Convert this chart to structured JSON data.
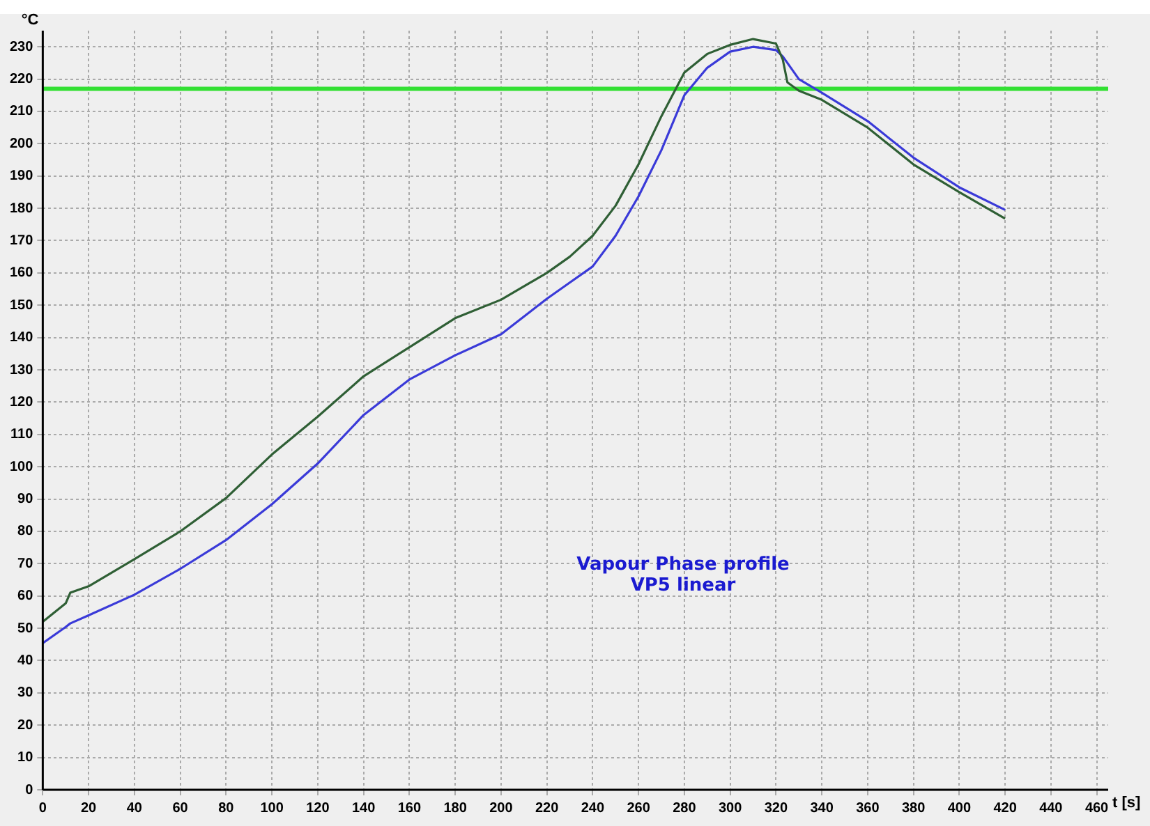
{
  "chart_data": {
    "type": "line",
    "xlabel": "t [s]",
    "ylabel": "°C",
    "annotations": [
      "Vapour Phase profile",
      "VP5 linear"
    ],
    "xlim": [
      0,
      465
    ],
    "ylim": [
      0,
      235
    ],
    "xticks": [
      0,
      20,
      40,
      60,
      80,
      100,
      120,
      140,
      160,
      180,
      200,
      220,
      240,
      260,
      280,
      300,
      320,
      340,
      360,
      380,
      400,
      420,
      440,
      460
    ],
    "yticks": [
      0,
      10,
      20,
      30,
      40,
      50,
      60,
      70,
      80,
      90,
      100,
      110,
      120,
      130,
      140,
      150,
      160,
      170,
      180,
      190,
      200,
      210,
      220,
      230
    ],
    "grid": true,
    "legend": false,
    "marker": "none",
    "line_style": "solid",
    "x": [
      0,
      10,
      12,
      20,
      40,
      60,
      80,
      100,
      120,
      140,
      160,
      180,
      200,
      220,
      230,
      240,
      250,
      260,
      270,
      280,
      290,
      300,
      310,
      320,
      323,
      325,
      330,
      340,
      360,
      380,
      400,
      420
    ],
    "series": [
      {
        "color": "#2f5f35",
        "values": [
          52,
          57.7,
          61,
          63,
          71.4,
          80,
          90.3,
          103.8,
          115.5,
          128,
          137,
          146,
          151.7,
          160,
          165,
          171.5,
          180.8,
          193.6,
          208.5,
          222,
          227.8,
          230.6,
          232.4,
          231,
          226,
          219,
          216.4,
          213.6,
          205,
          193.6,
          185,
          176.8
        ]
      },
      {
        "color": "#3a3ad8",
        "values": [
          45.4,
          50.4,
          51.5,
          54,
          60.4,
          68.4,
          77.3,
          88.4,
          101,
          116,
          127,
          134.5,
          141,
          152,
          157,
          162,
          171.5,
          183.7,
          198,
          215,
          223.5,
          228.5,
          230,
          229,
          227,
          225,
          220,
          215.8,
          207,
          195.7,
          186.5,
          179.5
        ]
      }
    ],
    "ref_lines": [
      {
        "axis": "y",
        "value": 217,
        "color": "#33e033"
      }
    ]
  }
}
